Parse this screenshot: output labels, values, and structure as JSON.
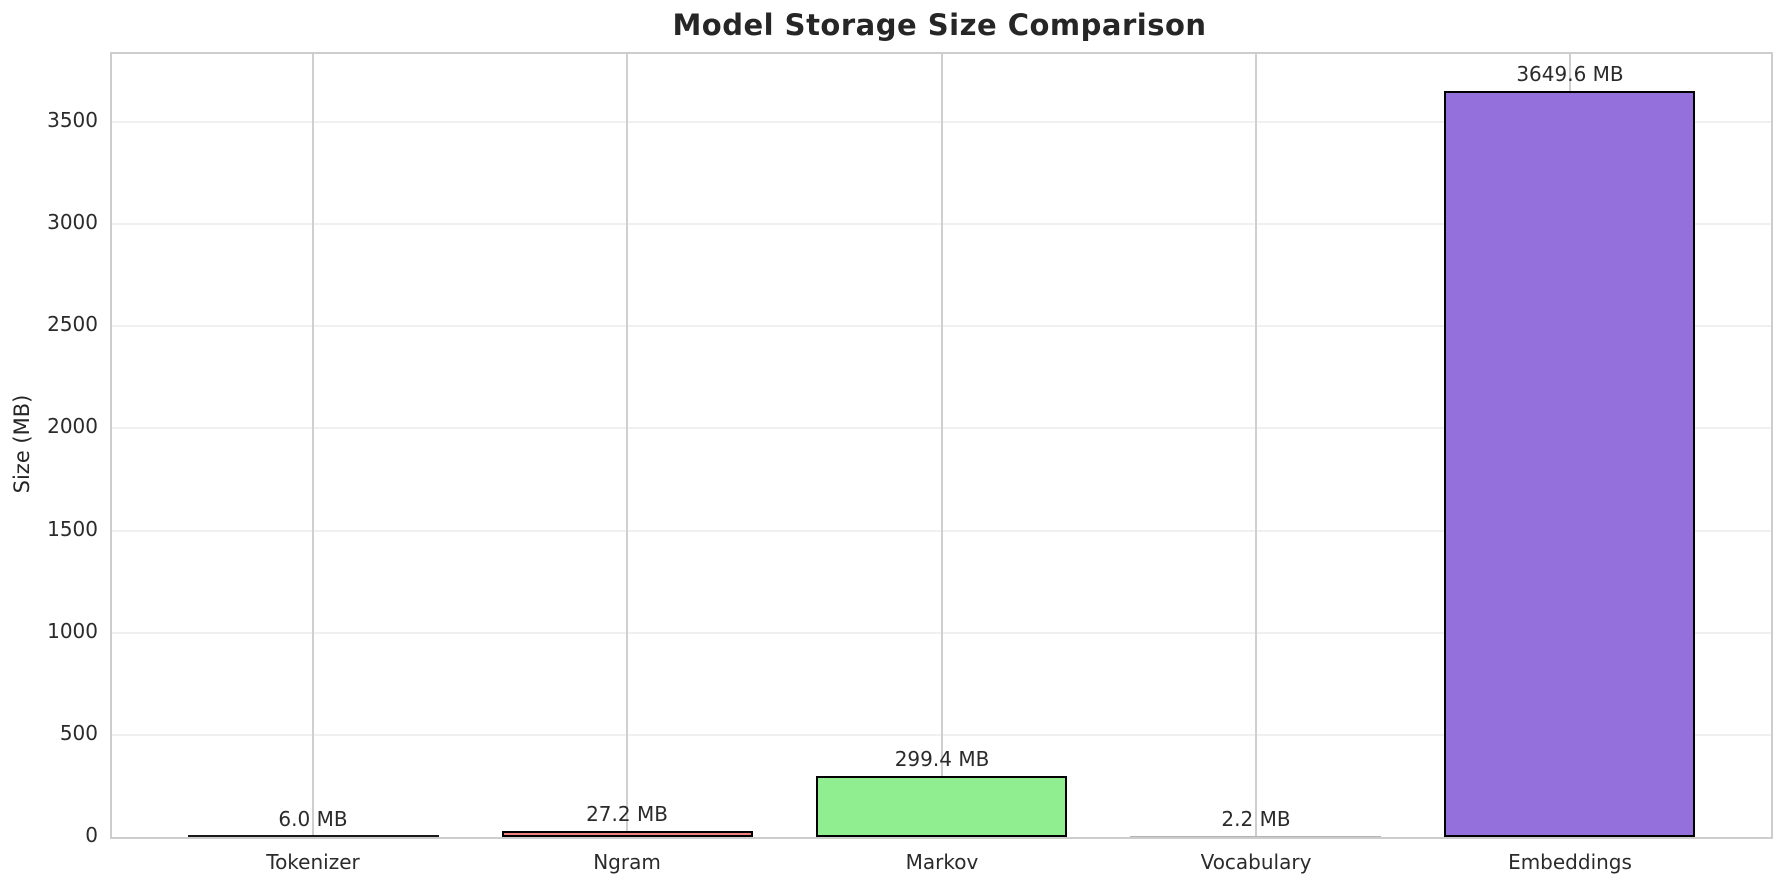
{
  "chart_data": {
    "type": "bar",
    "title": "Model Storage Size Comparison",
    "xlabel": "",
    "ylabel": "Size (MB)",
    "categories": [
      "Tokenizer",
      "Ngram",
      "Markov",
      "Vocabulary",
      "Embeddings"
    ],
    "values": [
      6.0,
      27.2,
      299.4,
      2.2,
      3649.6
    ],
    "value_labels": [
      "6.0 MB",
      "27.2 MB",
      "299.4 MB",
      "2.2 MB",
      "3649.6 MB"
    ],
    "bar_colors": [
      "#87CEEB",
      "#F08080",
      "#90EE90",
      "#FFD700",
      "#9370DB"
    ],
    "bar_edge_color": "#000000",
    "bar_width": 0.8,
    "xlim": [
      -0.64,
      4.64
    ],
    "ylim": [
      0,
      3832
    ],
    "yticks": [
      0,
      500,
      1000,
      1500,
      2000,
      2500,
      3000,
      3500
    ],
    "grid": true,
    "grid_horizontal_color": "#f0f0f0",
    "grid_vertical_color": "#cfcfcf",
    "spine_color": "#cdcdcd",
    "text_color": "#2b2b2b",
    "legend": "none"
  }
}
